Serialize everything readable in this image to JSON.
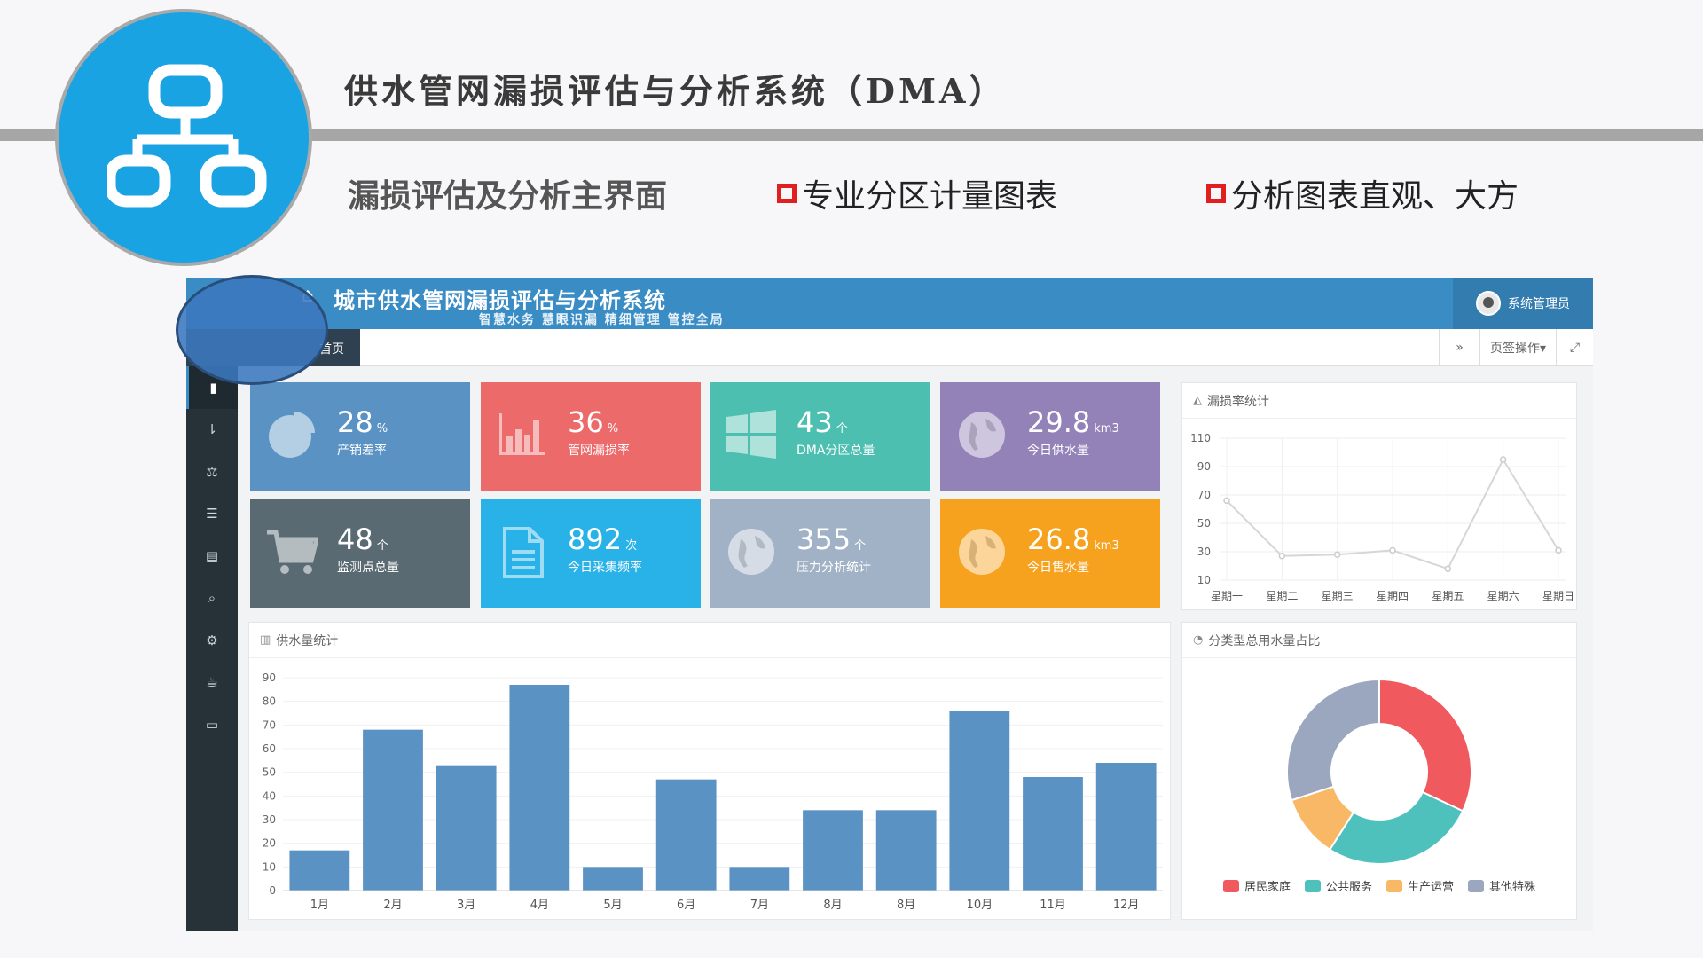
{
  "slide": {
    "title": "供水管网漏损评估与分析系统（DMA）",
    "subtitle_main": "漏损评估及分析主界面",
    "feature_1": "专业分区计量图表",
    "feature_2": "分析图表直观、大方"
  },
  "app": {
    "title": "城市供水管网漏损评估与分析系统",
    "slogan": "智慧水务  慧眼识漏  精细管理  管控全局",
    "user_name": "系统管理员",
    "home_tab": "首页",
    "page_ops": "页签操作▾",
    "forward_icon": "double-chevron-right-icon",
    "fullscreen_icon": "expand-icon"
  },
  "sidebar": {
    "icons": [
      "book-icon",
      "sort-icon",
      "balance-icon",
      "list-icon",
      "file-icon",
      "search-zoom-icon",
      "gears-icon",
      "coffee-icon",
      "monitor-icon"
    ]
  },
  "stats": [
    {
      "value": "28",
      "unit": "%",
      "label": "产销差率",
      "color": "#5a92c4",
      "icon": "pie-chart-icon"
    },
    {
      "value": "36",
      "unit": "%",
      "label": "管网漏损率",
      "color": "#ec6a6a",
      "icon": "bar-chart-icon"
    },
    {
      "value": "43",
      "unit": "个",
      "label": "DMA分区总量",
      "color": "#4dbfb0",
      "icon": "windows-icon"
    },
    {
      "value": "29.8",
      "unit": "km3",
      "label": "今日供水量",
      "color": "#9282b8",
      "icon": "globe-icon"
    },
    {
      "value": "48",
      "unit": "个",
      "label": "监测点总量",
      "color": "#596a73",
      "icon": "cart-icon"
    },
    {
      "value": "892",
      "unit": "次",
      "label": "今日采集频率",
      "color": "#29b2e8",
      "icon": "document-icon"
    },
    {
      "value": "355",
      "unit": "个",
      "label": "压力分析统计",
      "color": "#a2b2c6",
      "icon": "globe-icon"
    },
    {
      "value": "26.8",
      "unit": "km3",
      "label": "今日售水量",
      "color": "#f7a21e",
      "icon": "globe-icon"
    }
  ],
  "panels": {
    "line_title": "漏损率统计",
    "bar_title": "供水量统计",
    "pie_title": "分类型总用水量占比"
  },
  "chart_data": [
    {
      "type": "line",
      "title": "漏损率统计",
      "categories": [
        "星期一",
        "星期二",
        "星期三",
        "星期四",
        "星期五",
        "星期六",
        "星期日"
      ],
      "values": [
        66,
        27,
        28,
        31,
        18,
        95,
        31
      ],
      "ylim": [
        10,
        110
      ],
      "yticks": [
        10,
        30,
        50,
        70,
        90,
        110
      ],
      "color": "#d6d6d6",
      "grid": true
    },
    {
      "type": "bar",
      "title": "供水量统计",
      "categories": [
        "1月",
        "2月",
        "3月",
        "4月",
        "5月",
        "6月",
        "7月",
        "8月",
        "8月",
        "10月",
        "11月",
        "12月"
      ],
      "values": [
        17,
        68,
        53,
        87,
        10,
        47,
        10,
        34,
        34,
        76,
        48,
        54
      ],
      "ylim": [
        0,
        90
      ],
      "yticks": [
        0,
        10,
        20,
        30,
        40,
        50,
        60,
        70,
        80,
        90
      ],
      "color": "#5b92c4",
      "grid": true
    },
    {
      "type": "pie",
      "title": "分类型总用水量占比",
      "style": "donut",
      "labels": [
        "居民家庭",
        "公共服务",
        "生产运营",
        "其他特殊"
      ],
      "values": [
        32,
        27,
        11,
        30
      ],
      "colors": [
        "#f05a5f",
        "#4fc1bc",
        "#f9b865",
        "#9ba7be"
      ],
      "legend": "bottom"
    }
  ]
}
